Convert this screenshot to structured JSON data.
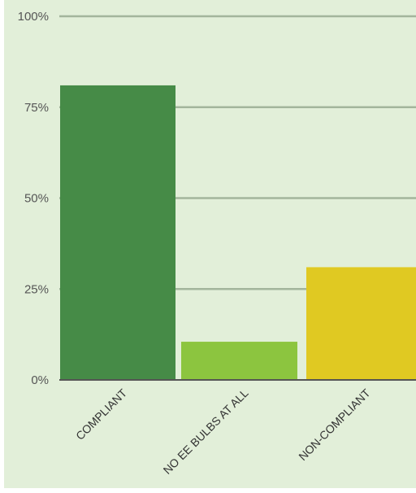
{
  "chart_data": {
    "type": "bar",
    "title": "",
    "xlabel": "",
    "ylabel": "",
    "categories": [
      "COMPLIANT",
      "NO EE BULBS AT ALL",
      "NON-COMPLIANT"
    ],
    "values": [
      81,
      10.5,
      31
    ],
    "ylim": [
      0,
      100
    ],
    "yticks": [
      "0%",
      "25%",
      "50%",
      "75%",
      "100%"
    ],
    "ytick_values": [
      0,
      25,
      50,
      75,
      100
    ],
    "colors": [
      "#468b47",
      "#8cc53f",
      "#e0c922"
    ],
    "grid": true,
    "legend": "none"
  }
}
